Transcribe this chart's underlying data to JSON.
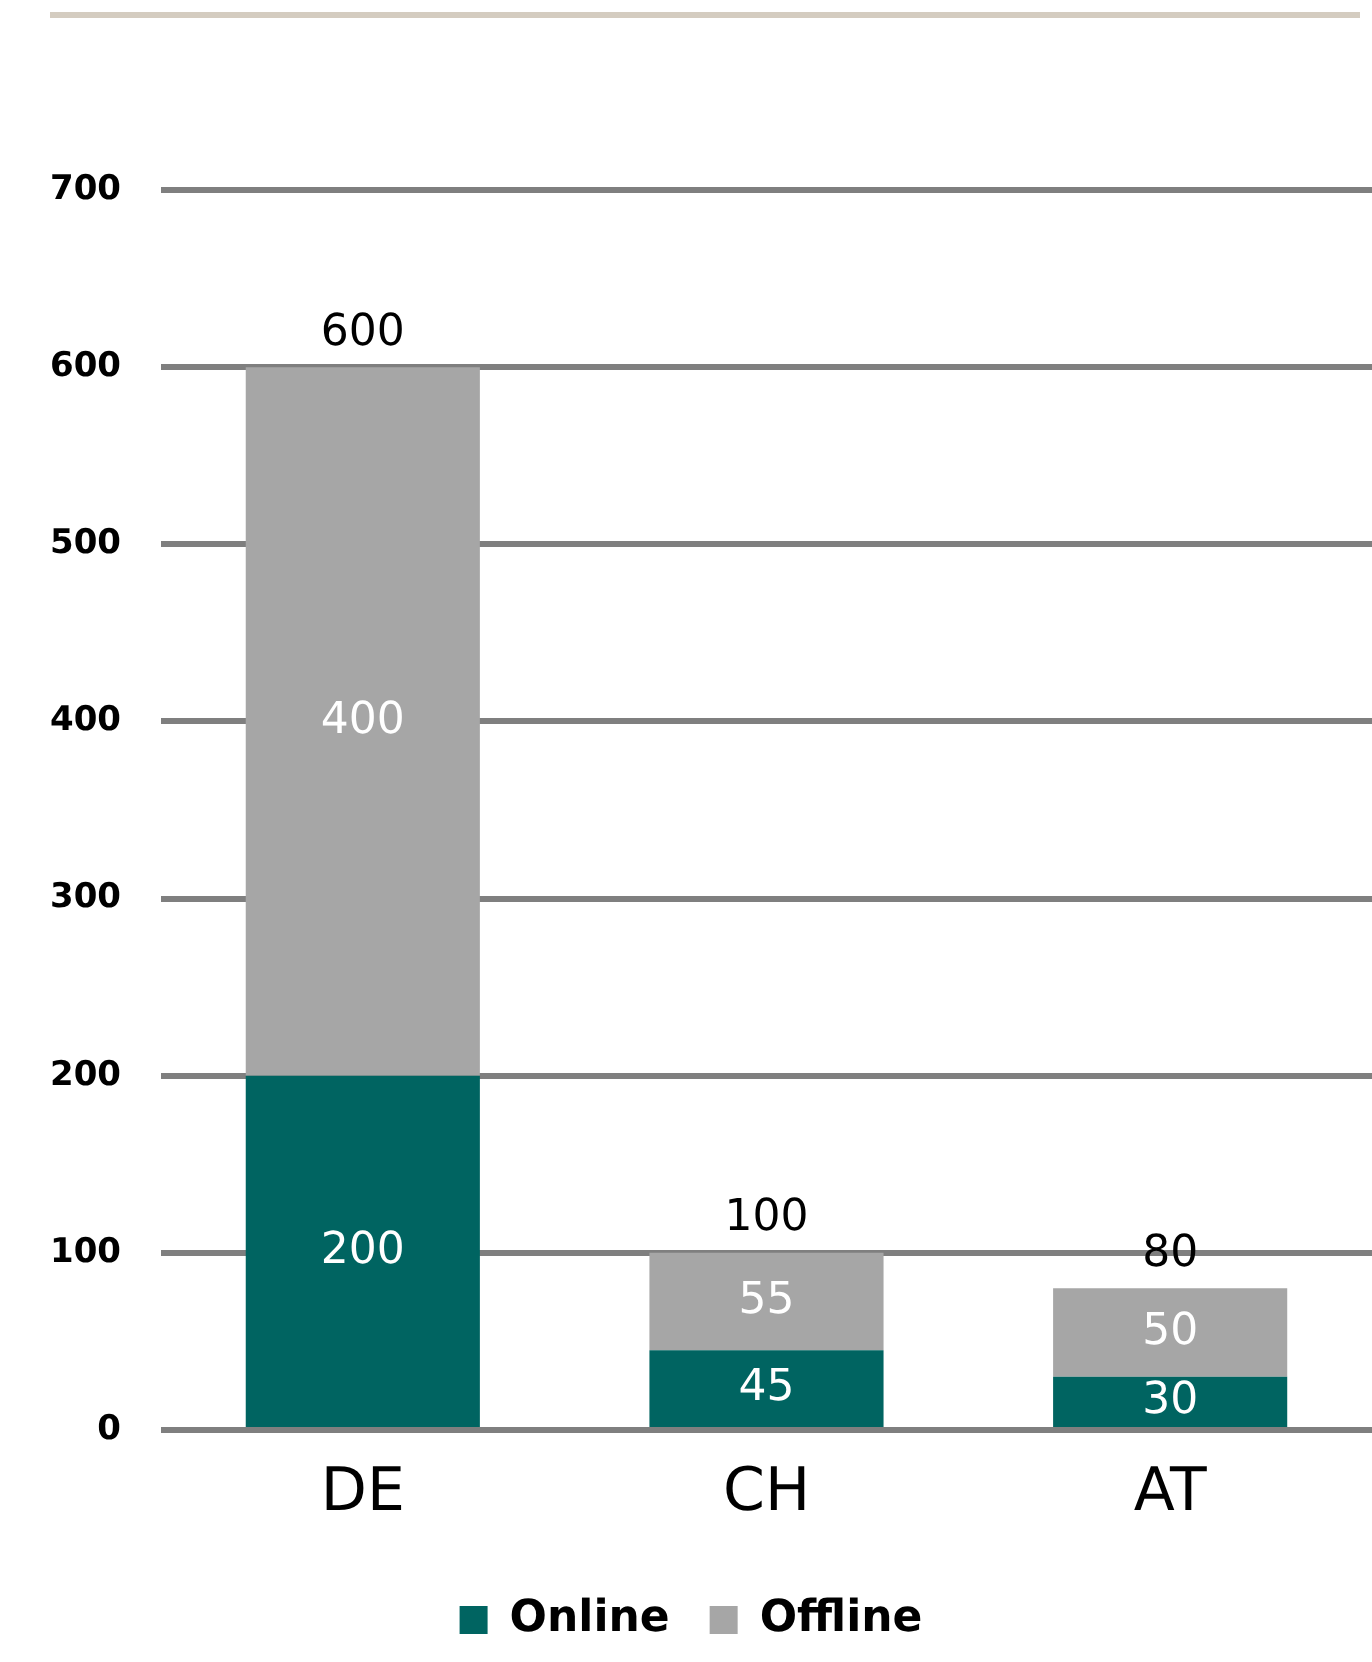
{
  "chart_data": {
    "type": "bar",
    "stacked": true,
    "categories": [
      "DE",
      "CH",
      "AT"
    ],
    "series": [
      {
        "name": "Online",
        "color": "#006461",
        "values": [
          200,
          45,
          30
        ]
      },
      {
        "name": "Offline",
        "color": "#a6a6a6",
        "values": [
          400,
          55,
          50
        ]
      }
    ],
    "ylim": [
      0,
      700
    ],
    "yticks": [
      0,
      100,
      200,
      300,
      400,
      500,
      600,
      700
    ],
    "grid": "y",
    "legend": "bottom",
    "data_labels": true,
    "totals": [
      "600",
      "100",
      "80"
    ]
  }
}
